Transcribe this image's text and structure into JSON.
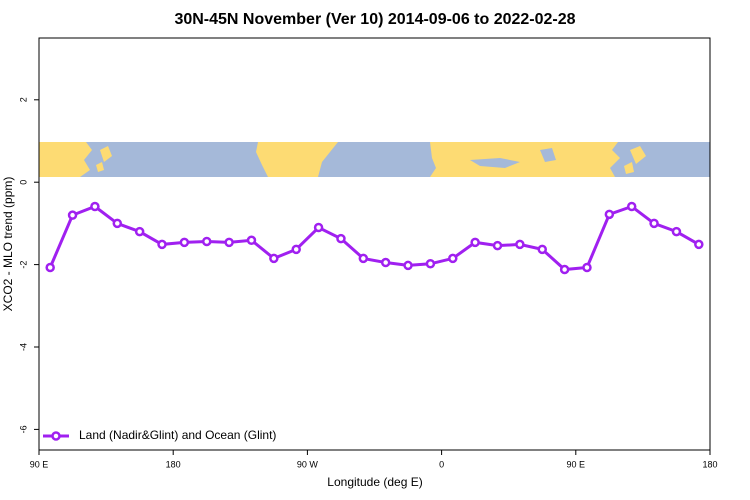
{
  "chart_data": {
    "type": "line",
    "title": "30N-45N November (Ver 10)   2014-09-06 to 2022-02-28",
    "x_label": "Longitude (deg E)",
    "y_label": "XCO2 - MLO trend (ppm)",
    "x": [
      97.5,
      112.5,
      127.5,
      142.5,
      157.5,
      172.5,
      187.5,
      202.5,
      217.5,
      232.5,
      247.5,
      262.5,
      277.5,
      292.5,
      307.5,
      322.5,
      337.5,
      352.5,
      367.5,
      382.5,
      397.5,
      412.5,
      427.5,
      442.5,
      457.5,
      472.5,
      487.5,
      502.5,
      517.5,
      532.5
    ],
    "series": [
      {
        "name": "Land (Nadir&Glint) and Ocean (Glint)",
        "color": "#a020f0",
        "values": [
          -2.07,
          -0.8,
          -0.59,
          -1.0,
          -1.2,
          -1.51,
          -1.46,
          -1.44,
          -1.46,
          -1.41,
          -1.85,
          -1.63,
          -1.1,
          -1.37,
          -1.85,
          -1.95,
          -2.02,
          -1.98,
          -1.85,
          -1.46,
          -1.54,
          -1.51,
          -1.63,
          -2.12,
          -2.07,
          -0.78,
          -0.59,
          -1.0,
          -1.2,
          -1.51
        ]
      }
    ],
    "xlim": [
      90,
      540
    ],
    "xticks": [
      {
        "value": 90,
        "label": "90 E"
      },
      180,
      {
        "value": 270,
        "label": "90 W"
      },
      {
        "value": 360,
        "label": "0"
      },
      {
        "value": 450,
        "label": "90 E"
      },
      {
        "value": 540,
        "label": "180"
      }
    ],
    "ylim": [
      -6.5,
      3.5
    ],
    "yticks": [
      -6,
      -4,
      -2,
      0,
      2
    ],
    "legend": "bottom-left"
  }
}
